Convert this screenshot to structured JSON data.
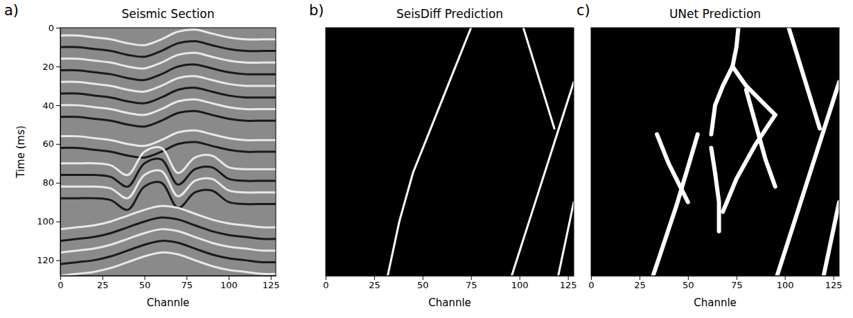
{
  "chart_data": [
    {
      "type": "seismic",
      "title": "Seismic Section",
      "annotation": "a)",
      "x_label": "Channle",
      "y_label": "Time (ms)",
      "xlim": [
        0,
        128
      ],
      "ylim": [
        0,
        128
      ],
      "xticks": [
        0,
        25,
        50,
        75,
        100,
        125
      ],
      "yticks": [
        0,
        20,
        40,
        60,
        80,
        100,
        120
      ],
      "series": [
        {
          "color": "#e8e8e8",
          "x": [
            0,
            10,
            20,
            30,
            40,
            50,
            60,
            70,
            80,
            90,
            100,
            110,
            120,
            128
          ],
          "values": [
            4,
            4,
            5,
            6,
            8,
            9,
            6,
            2,
            1,
            3,
            5,
            6,
            6,
            6
          ]
        },
        {
          "color": "#1a1a1a",
          "x": [
            0,
            10,
            20,
            30,
            40,
            50,
            60,
            70,
            80,
            90,
            100,
            110,
            120,
            128
          ],
          "values": [
            10,
            10,
            11,
            12,
            14,
            15,
            12,
            8,
            7,
            9,
            11,
            12,
            12,
            12
          ]
        },
        {
          "color": "#e8e8e8",
          "x": [
            0,
            10,
            20,
            30,
            40,
            50,
            60,
            70,
            80,
            90,
            100,
            110,
            120,
            128
          ],
          "values": [
            16,
            16,
            17,
            18,
            20,
            21,
            18,
            14,
            13,
            15,
            17,
            18,
            18,
            18
          ]
        },
        {
          "color": "#1a1a1a",
          "x": [
            0,
            10,
            20,
            30,
            40,
            50,
            60,
            70,
            80,
            90,
            100,
            110,
            120,
            128
          ],
          "values": [
            22,
            22,
            23,
            24,
            26,
            27,
            24,
            20,
            19,
            21,
            23,
            24,
            24,
            24
          ]
        },
        {
          "color": "#e8e8e8",
          "x": [
            0,
            10,
            20,
            30,
            40,
            50,
            60,
            70,
            80,
            90,
            100,
            110,
            120,
            128
          ],
          "values": [
            28,
            28,
            29,
            30,
            32,
            33,
            30,
            26,
            25,
            27,
            29,
            30,
            30,
            30
          ]
        },
        {
          "color": "#1a1a1a",
          "x": [
            0,
            10,
            20,
            30,
            40,
            50,
            60,
            70,
            80,
            90,
            100,
            110,
            120,
            128
          ],
          "values": [
            34,
            34,
            35,
            36,
            38,
            39,
            36,
            32,
            31,
            33,
            35,
            36,
            36,
            36
          ]
        },
        {
          "color": "#e8e8e8",
          "x": [
            0,
            10,
            20,
            30,
            40,
            50,
            60,
            70,
            80,
            90,
            100,
            110,
            120,
            128
          ],
          "values": [
            40,
            40,
            41,
            42,
            44,
            45,
            42,
            38,
            37,
            39,
            41,
            42,
            42,
            42
          ]
        },
        {
          "color": "#1a1a1a",
          "x": [
            0,
            10,
            20,
            30,
            40,
            50,
            60,
            70,
            80,
            90,
            100,
            110,
            120,
            128
          ],
          "values": [
            46,
            46,
            47,
            48,
            50,
            51,
            48,
            44,
            43,
            45,
            47,
            48,
            48,
            48
          ]
        },
        {
          "color": "#e8e8e8",
          "x": [
            0,
            10,
            20,
            30,
            40,
            50,
            60,
            70,
            80,
            90,
            100,
            110,
            120,
            128
          ],
          "values": [
            56,
            56,
            57,
            58,
            60,
            61,
            58,
            54,
            53,
            55,
            57,
            58,
            58,
            58
          ]
        },
        {
          "color": "#1a1a1a",
          "x": [
            0,
            10,
            20,
            30,
            40,
            50,
            60,
            70,
            80,
            90,
            100,
            110,
            120,
            128
          ],
          "values": [
            62,
            62,
            63,
            64,
            66,
            67,
            64,
            60,
            59,
            61,
            63,
            64,
            64,
            64
          ]
        },
        {
          "color": "#e8e8e8",
          "x": [
            0,
            10,
            20,
            30,
            40,
            50,
            60,
            70,
            80,
            90,
            100,
            110,
            120,
            128
          ],
          "values": [
            70,
            70,
            70,
            71,
            76,
            64,
            62,
            75,
            67,
            66,
            72,
            73,
            73,
            73
          ]
        },
        {
          "color": "#1a1a1a",
          "x": [
            0,
            10,
            20,
            30,
            40,
            50,
            60,
            70,
            80,
            90,
            100,
            110,
            120,
            128
          ],
          "values": [
            76,
            76,
            76,
            77,
            82,
            70,
            68,
            81,
            73,
            72,
            78,
            79,
            79,
            79
          ]
        },
        {
          "color": "#e8e8e8",
          "x": [
            0,
            10,
            20,
            30,
            40,
            50,
            60,
            70,
            80,
            90,
            100,
            110,
            120,
            128
          ],
          "values": [
            82,
            82,
            82,
            83,
            88,
            76,
            74,
            87,
            79,
            78,
            84,
            85,
            85,
            85
          ]
        },
        {
          "color": "#1a1a1a",
          "x": [
            0,
            10,
            20,
            30,
            40,
            50,
            60,
            70,
            80,
            90,
            100,
            110,
            120,
            128
          ],
          "values": [
            88,
            88,
            88,
            89,
            94,
            82,
            80,
            93,
            85,
            84,
            90,
            91,
            91,
            91
          ]
        },
        {
          "color": "#e8e8e8",
          "x": [
            0,
            10,
            20,
            30,
            40,
            50,
            60,
            70,
            80,
            90,
            100,
            110,
            120,
            128
          ],
          "values": [
            104,
            103,
            102,
            100,
            97,
            94,
            92,
            93,
            96,
            99,
            101,
            102,
            103,
            103
          ]
        },
        {
          "color": "#1a1a1a",
          "x": [
            0,
            10,
            20,
            30,
            40,
            50,
            60,
            70,
            80,
            90,
            100,
            110,
            120,
            128
          ],
          "values": [
            110,
            109,
            108,
            106,
            103,
            100,
            98,
            99,
            102,
            105,
            107,
            108,
            109,
            109
          ]
        },
        {
          "color": "#e8e8e8",
          "x": [
            0,
            10,
            20,
            30,
            40,
            50,
            60,
            70,
            80,
            90,
            100,
            110,
            120,
            128
          ],
          "values": [
            116,
            115,
            114,
            112,
            109,
            106,
            104,
            105,
            108,
            111,
            113,
            114,
            115,
            115
          ]
        },
        {
          "color": "#1a1a1a",
          "x": [
            0,
            10,
            20,
            30,
            40,
            50,
            60,
            70,
            80,
            90,
            100,
            110,
            120,
            128
          ],
          "values": [
            122,
            121,
            120,
            118,
            115,
            112,
            110,
            111,
            114,
            117,
            119,
            120,
            121,
            121
          ]
        },
        {
          "color": "#e8e8e8",
          "x": [
            0,
            10,
            20,
            30,
            40,
            50,
            60,
            70,
            80,
            90,
            100,
            110,
            120,
            128
          ],
          "values": [
            128,
            127,
            126,
            124,
            121,
            118,
            116,
            117,
            120,
            123,
            125,
            126,
            127,
            127
          ]
        }
      ]
    },
    {
      "type": "mask",
      "title": "SeisDiff Prediction",
      "annotation": "b)",
      "x_label": "Channle",
      "tick_labels": "x",
      "line_style": "solid",
      "xlim": [
        0,
        128
      ],
      "ylim": [
        0,
        128
      ],
      "xticks": [
        0,
        25,
        50,
        75,
        100,
        125
      ],
      "series": [
        {
          "color": "#ffffff",
          "x": [
            75,
            65,
            55,
            45,
            38,
            32
          ],
          "values": [
            0,
            25,
            50,
            75,
            100,
            128
          ]
        },
        {
          "color": "#ffffff",
          "x": [
            102,
            106,
            110,
            114,
            118
          ],
          "values": [
            0,
            13,
            26,
            39,
            52
          ]
        },
        {
          "color": "#ffffff",
          "x": [
            128,
            120,
            112,
            104,
            96
          ],
          "values": [
            28,
            53,
            78,
            103,
            128
          ]
        },
        {
          "color": "#ffffff",
          "x": [
            128,
            120
          ],
          "values": [
            90,
            128
          ]
        }
      ]
    },
    {
      "type": "mask",
      "title": "UNet Prediction",
      "annotation": "c)",
      "x_label": "Channle",
      "tick_labels": "x",
      "line_style": "thick",
      "xlim": [
        0,
        128
      ],
      "ylim": [
        0,
        128
      ],
      "xticks": [
        0,
        25,
        50,
        75,
        100,
        125
      ],
      "series": [
        {
          "color": "#ffffff",
          "x": [
            76,
            75,
            73
          ],
          "values": [
            0,
            10,
            20
          ]
        },
        {
          "color": "#ffffff",
          "x": [
            73,
            68,
            64,
            62
          ],
          "values": [
            20,
            30,
            40,
            55
          ]
        },
        {
          "color": "#ffffff",
          "x": [
            73,
            80,
            88,
            95
          ],
          "values": [
            20,
            30,
            38,
            45
          ]
        },
        {
          "color": "#ffffff",
          "x": [
            95,
            85,
            75,
            68
          ],
          "values": [
            45,
            60,
            78,
            95
          ]
        },
        {
          "color": "#ffffff",
          "x": [
            80,
            85,
            90,
            95
          ],
          "values": [
            32,
            50,
            68,
            82
          ]
        },
        {
          "color": "#ffffff",
          "x": [
            32,
            38,
            44,
            50,
            55
          ],
          "values": [
            128,
            110,
            92,
            72,
            55
          ]
        },
        {
          "color": "#ffffff",
          "x": [
            34,
            40,
            46,
            50
          ],
          "values": [
            55,
            70,
            82,
            90
          ]
        },
        {
          "color": "#ffffff",
          "x": [
            62,
            64,
            66,
            66
          ],
          "values": [
            62,
            75,
            90,
            105
          ]
        },
        {
          "color": "#ffffff",
          "x": [
            102,
            106,
            110,
            114,
            118
          ],
          "values": [
            0,
            13,
            26,
            39,
            52
          ]
        },
        {
          "color": "#ffffff",
          "x": [
            128,
            120,
            112,
            104,
            96
          ],
          "values": [
            28,
            53,
            78,
            103,
            128
          ]
        },
        {
          "color": "#ffffff",
          "x": [
            128,
            120
          ],
          "values": [
            90,
            128
          ]
        }
      ]
    }
  ]
}
